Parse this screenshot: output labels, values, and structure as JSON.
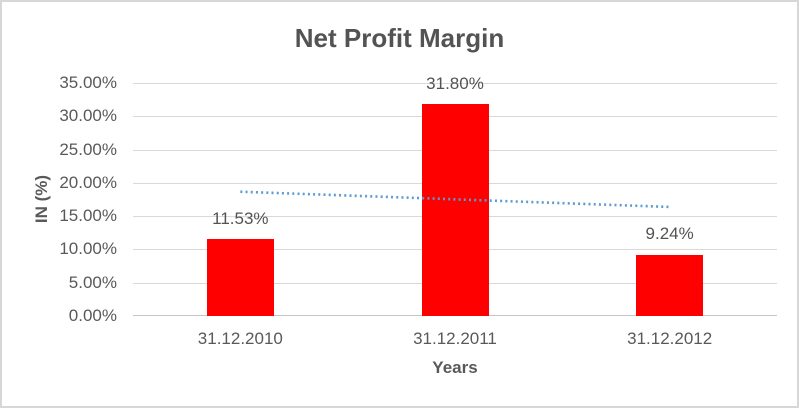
{
  "chart_data": {
    "type": "bar",
    "title": "Net Profit Margin",
    "xlabel": "Years",
    "ylabel": "IN (%)",
    "categories": [
      "31.12.2010",
      "31.12.2011",
      "31.12.2012"
    ],
    "values": [
      11.53,
      31.8,
      9.24
    ],
    "data_labels": [
      "11.53%",
      "31.80%",
      "9.24%"
    ],
    "ylim": [
      0,
      35
    ],
    "ytick_step": 5,
    "ytick_labels": [
      "0.00%",
      "5.00%",
      "10.00%",
      "15.00%",
      "20.00%",
      "25.00%",
      "30.00%",
      "35.00%"
    ],
    "grid": true,
    "legend": false,
    "bar_color": "#FF0000",
    "trendline": {
      "type": "linear",
      "style": "dotted",
      "color": "#5B9BD5",
      "start_value": 18.67,
      "end_value": 16.38
    },
    "colors": {
      "title_text": "#535353",
      "axis_text": "#595959",
      "data_label_text": "#535353",
      "gridline": "#D9D9D9",
      "axis_line": "#C6C6C6",
      "chart_border": "#D7D7D7",
      "background": "#FFFFFF"
    }
  }
}
